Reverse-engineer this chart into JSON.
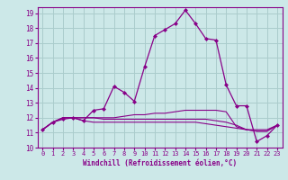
{
  "xlabel": "Windchill (Refroidissement éolien,°C)",
  "xlim": [
    -0.5,
    23.5
  ],
  "ylim": [
    10,
    19.4
  ],
  "yticks": [
    10,
    11,
    12,
    13,
    14,
    15,
    16,
    17,
    18,
    19
  ],
  "xticks": [
    0,
    1,
    2,
    3,
    4,
    5,
    6,
    7,
    8,
    9,
    10,
    11,
    12,
    13,
    14,
    15,
    16,
    17,
    18,
    19,
    20,
    21,
    22,
    23
  ],
  "background_color": "#cce8e8",
  "line_color": "#880088",
  "grid_color": "#aacccc",
  "series": [
    [
      11.2,
      11.7,
      11.9,
      12.0,
      11.8,
      12.5,
      12.6,
      14.1,
      13.7,
      13.1,
      15.4,
      17.5,
      17.9,
      18.3,
      19.2,
      18.3,
      17.3,
      17.2,
      14.2,
      12.8,
      12.8,
      10.4,
      10.8,
      11.5
    ],
    [
      11.2,
      11.7,
      12.0,
      12.0,
      12.0,
      12.0,
      12.0,
      12.0,
      12.1,
      12.2,
      12.2,
      12.3,
      12.3,
      12.4,
      12.5,
      12.5,
      12.5,
      12.5,
      12.4,
      11.4,
      11.2,
      11.2,
      11.2,
      11.5
    ],
    [
      11.2,
      11.7,
      12.0,
      12.0,
      12.0,
      12.0,
      11.9,
      11.9,
      11.9,
      11.9,
      11.9,
      11.9,
      11.9,
      11.9,
      11.9,
      11.9,
      11.9,
      11.8,
      11.7,
      11.5,
      11.2,
      11.1,
      11.1,
      11.5
    ],
    [
      11.2,
      11.7,
      12.0,
      12.0,
      11.8,
      11.7,
      11.7,
      11.7,
      11.7,
      11.7,
      11.7,
      11.7,
      11.7,
      11.7,
      11.7,
      11.7,
      11.6,
      11.5,
      11.4,
      11.3,
      11.2,
      11.1,
      11.1,
      11.5
    ]
  ]
}
